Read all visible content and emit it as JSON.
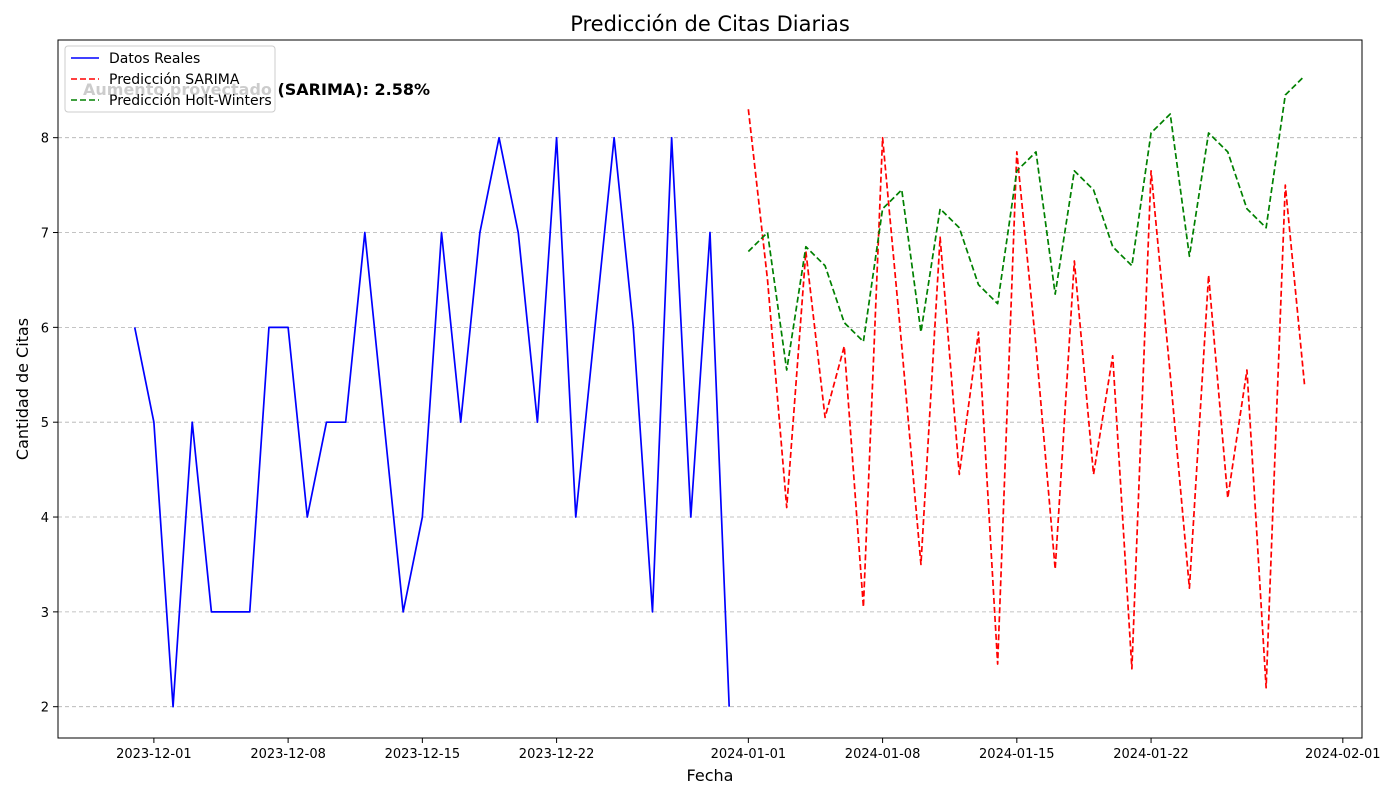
{
  "chart_data": {
    "type": "line",
    "title": "Predicción de Citas Diarias",
    "xlabel": "Fecha",
    "ylabel": "Cantidad de Citas",
    "annotation": "Aumento proyectado (SARIMA): 2.58%",
    "annotation_color": "#008000",
    "x_range": [
      "2023-11-26",
      "2024-02-02"
    ],
    "ylim": [
      1.67,
      9.03
    ],
    "grid": "y, dashed",
    "legend_position": "top-left",
    "x_ticks": [
      "2023-12-01",
      "2023-12-08",
      "2023-12-15",
      "2023-12-22",
      "2024-01-01",
      "2024-01-08",
      "2024-01-15",
      "2024-01-22",
      "2024-02-01"
    ],
    "y_ticks": [
      2,
      3,
      4,
      5,
      6,
      7,
      8
    ],
    "series": [
      {
        "name": "Datos Reales",
        "color": "#0000ff",
        "style": "solid",
        "start": "2023-11-30",
        "values": [
          6,
          5,
          2,
          5,
          3,
          3,
          3,
          6,
          6,
          4,
          5,
          5,
          7,
          5,
          3,
          4,
          7,
          5,
          7,
          8,
          7,
          5,
          8,
          4,
          6,
          8,
          6,
          3,
          8,
          4,
          7,
          2
        ]
      },
      {
        "name": "Predicción SARIMA",
        "color": "#ff0000",
        "style": "dashed",
        "start": "2024-01-01",
        "values": [
          8.3,
          6.5,
          4.1,
          6.8,
          5.05,
          5.8,
          3.05,
          8.0,
          5.8,
          3.5,
          6.95,
          4.45,
          5.95,
          2.45,
          7.85,
          5.8,
          3.45,
          6.7,
          4.45,
          5.7,
          2.4,
          7.65,
          5.5,
          3.25,
          6.55,
          4.2,
          5.55,
          2.2,
          7.5,
          5.4
        ]
      },
      {
        "name": "Predicción Holt-Winters",
        "color": "#008000",
        "style": "dashed",
        "start": "2024-01-01",
        "values": [
          6.8,
          7.0,
          5.55,
          6.85,
          6.65,
          6.05,
          5.85,
          7.25,
          7.45,
          5.95,
          7.25,
          7.05,
          6.45,
          6.25,
          7.65,
          7.85,
          6.35,
          7.65,
          7.45,
          6.85,
          6.65,
          8.05,
          8.25,
          6.75,
          8.05,
          7.85,
          7.25,
          7.05,
          8.45,
          8.65
        ]
      }
    ]
  }
}
